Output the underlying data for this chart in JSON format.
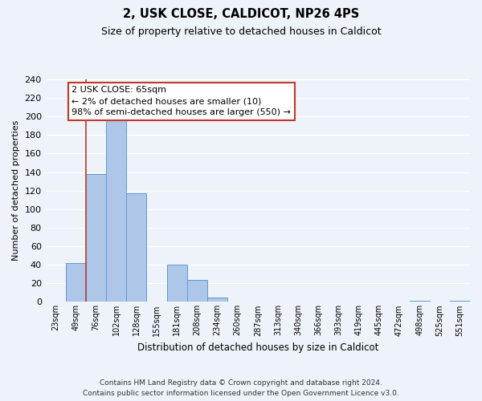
{
  "title": "2, USK CLOSE, CALDICOT, NP26 4PS",
  "subtitle": "Size of property relative to detached houses in Caldicot",
  "xlabel": "Distribution of detached houses by size in Caldicot",
  "ylabel": "Number of detached properties",
  "bar_labels": [
    "23sqm",
    "49sqm",
    "76sqm",
    "102sqm",
    "128sqm",
    "155sqm",
    "181sqm",
    "208sqm",
    "234sqm",
    "260sqm",
    "287sqm",
    "313sqm",
    "340sqm",
    "366sqm",
    "393sqm",
    "419sqm",
    "445sqm",
    "472sqm",
    "498sqm",
    "525sqm",
    "551sqm"
  ],
  "bar_values": [
    0,
    42,
    138,
    199,
    117,
    0,
    40,
    24,
    5,
    0,
    0,
    0,
    0,
    0,
    0,
    0,
    0,
    0,
    1,
    0,
    1
  ],
  "bar_color": "#aec6e8",
  "bar_edge_color": "#5b9bd5",
  "ylim": [
    0,
    240
  ],
  "yticks": [
    0,
    20,
    40,
    60,
    80,
    100,
    120,
    140,
    160,
    180,
    200,
    220,
    240
  ],
  "vline_x_index": 1.5,
  "vline_color": "#c0392b",
  "annotation_title": "2 USK CLOSE: 65sqm",
  "annotation_line1": "← 2% of detached houses are smaller (10)",
  "annotation_line2": "98% of semi-detached houses are larger (550) →",
  "annotation_box_edge": "#c0392b",
  "footnote1": "Contains HM Land Registry data © Crown copyright and database right 2024.",
  "footnote2": "Contains public sector information licensed under the Open Government Licence v3.0.",
  "background_color": "#eef2f9",
  "grid_color": "#ffffff"
}
